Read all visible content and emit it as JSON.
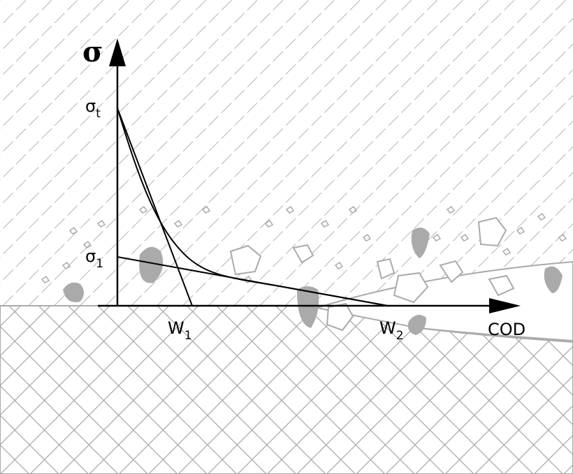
{
  "labels": {
    "y_axis": "σ",
    "sigma_t": {
      "symbol": "σ",
      "subscript": "t"
    },
    "sigma_1": {
      "symbol": "σ",
      "subscript": "1"
    },
    "w1": {
      "symbol": "W",
      "subscript": "1"
    },
    "w2": {
      "symbol": "W",
      "subscript": "2"
    },
    "x_axis": "COD"
  }
}
